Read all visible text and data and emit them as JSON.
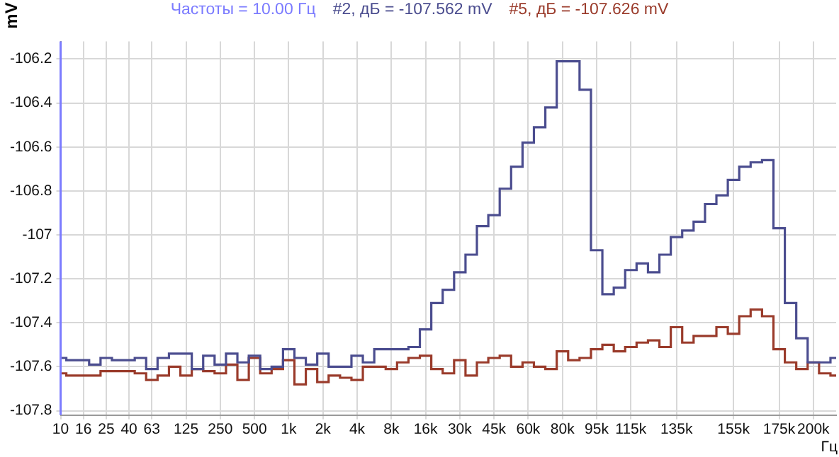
{
  "chart_data": {
    "type": "step",
    "ylabel": "mV",
    "xlabel": "Гц",
    "categories": [
      "10",
      null,
      "16",
      null,
      "25",
      null,
      "40",
      null,
      "63",
      null,
      null,
      "125",
      null,
      null,
      "250",
      null,
      null,
      "500",
      null,
      null,
      "1k",
      null,
      null,
      "2k",
      null,
      null,
      "4k",
      null,
      null,
      "8k",
      null,
      null,
      "16k",
      null,
      null,
      "30k",
      null,
      null,
      "45k",
      null,
      null,
      "60k",
      null,
      null,
      "80k",
      null,
      null,
      "95k",
      null,
      null,
      "115k",
      null,
      null,
      null,
      "135k",
      null,
      null,
      null,
      null,
      "155k",
      null,
      null,
      null,
      "175k",
      null,
      null,
      "200k",
      null,
      null
    ],
    "series": [
      {
        "name": "#2, дБ = -107.562 mV",
        "color": "#4b4d8f",
        "values": [
          -107.56,
          -107.57,
          -107.57,
          -107.59,
          -107.56,
          -107.57,
          -107.57,
          -107.56,
          -107.61,
          -107.56,
          -107.54,
          -107.54,
          -107.61,
          -107.55,
          -107.59,
          -107.54,
          -107.58,
          -107.55,
          -107.61,
          -107.6,
          -107.52,
          -107.56,
          -107.59,
          -107.54,
          -107.6,
          -107.6,
          -107.55,
          -107.58,
          -107.52,
          -107.52,
          -107.52,
          -107.51,
          -107.43,
          -107.31,
          -107.25,
          -107.17,
          -107.09,
          -106.96,
          -106.91,
          -106.79,
          -106.69,
          -106.58,
          -106.51,
          -106.42,
          -106.21,
          -106.21,
          -106.34,
          -107.07,
          -107.27,
          -107.24,
          -107.16,
          -107.13,
          -107.17,
          -107.09,
          -107.01,
          -106.98,
          -106.94,
          -106.86,
          -106.82,
          -106.75,
          -106.69,
          -106.67,
          -106.66,
          -106.97,
          -107.31,
          -107.47,
          -107.58,
          -107.58,
          -107.56
        ]
      },
      {
        "name": "#5, дБ = -107.626 mV",
        "color": "#9a3b2b",
        "values": [
          -107.63,
          -107.64,
          -107.64,
          -107.64,
          -107.62,
          -107.62,
          -107.62,
          -107.63,
          -107.66,
          -107.64,
          -107.6,
          -107.64,
          -107.61,
          -107.62,
          -107.63,
          -107.59,
          -107.66,
          -107.56,
          -107.63,
          -107.61,
          -107.57,
          -107.68,
          -107.61,
          -107.67,
          -107.64,
          -107.65,
          -107.66,
          -107.6,
          -107.6,
          -107.61,
          -107.58,
          -107.56,
          -107.55,
          -107.61,
          -107.63,
          -107.57,
          -107.64,
          -107.58,
          -107.56,
          -107.55,
          -107.6,
          -107.58,
          -107.6,
          -107.61,
          -107.53,
          -107.57,
          -107.56,
          -107.52,
          -107.5,
          -107.53,
          -107.51,
          -107.49,
          -107.48,
          -107.51,
          -107.42,
          -107.49,
          -107.46,
          -107.46,
          -107.42,
          -107.45,
          -107.37,
          -107.34,
          -107.37,
          -107.52,
          -107.58,
          -107.61,
          -107.58,
          -107.63,
          -107.64
        ]
      }
    ],
    "ylim": [
      -107.82,
      -106.12
    ],
    "yticks": [
      -107.8,
      -107.6,
      -107.4,
      -107.2,
      -107,
      -106.8,
      -106.6,
      -106.4,
      -106.2
    ],
    "ref_lines": [
      {
        "axis": "x",
        "value": "10",
        "label": "Частоты = 10.00 Гц",
        "color": "#7b7bff"
      }
    ],
    "grid": true,
    "legend": "top"
  }
}
